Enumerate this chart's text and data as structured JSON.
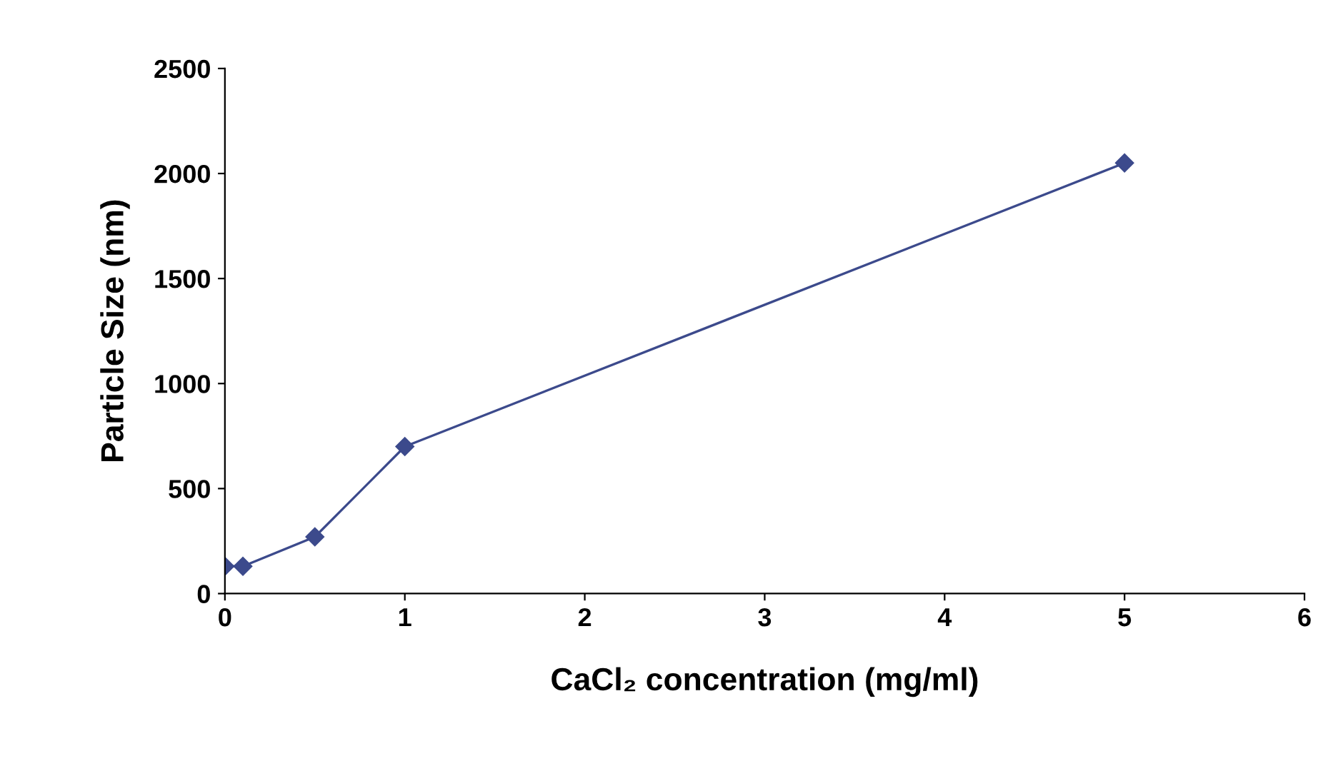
{
  "chart_data": {
    "type": "line",
    "xlabel": "CaCl₂ concentration (mg/ml)",
    "ylabel": "Particle Size (nm)",
    "x": [
      0,
      0.1,
      0.5,
      1,
      5
    ],
    "series": [
      {
        "color": "#3c4a8c",
        "values": [
          130,
          130,
          270,
          700,
          2050
        ]
      }
    ],
    "xlim": [
      0,
      6
    ],
    "xticks": [
      0,
      1,
      2,
      3,
      4,
      5,
      6
    ],
    "ylim": [
      0,
      2500
    ],
    "yticks": [
      0,
      500,
      1000,
      1500,
      2000,
      2500
    ],
    "grid": false,
    "legend": false,
    "marker": "diamond",
    "line_style": "solid"
  }
}
